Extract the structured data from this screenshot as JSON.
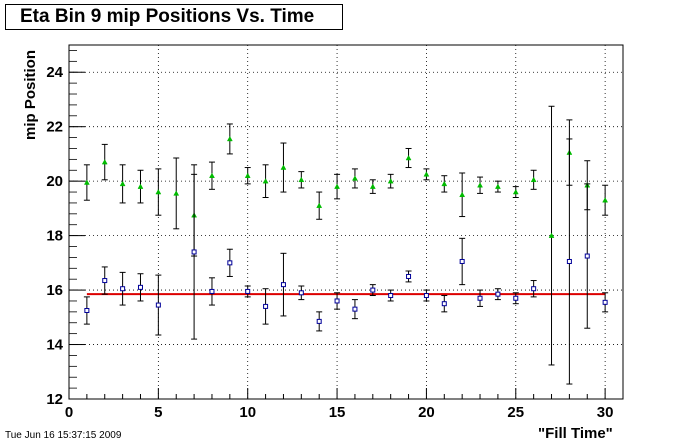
{
  "chart_data": {
    "type": "scatter",
    "title": "Eta Bin 9 mip Positions Vs. Time",
    "xlabel": "\"Fill Time\"",
    "ylabel": "mip Position",
    "xlim": [
      0,
      31
    ],
    "ylim": [
      12,
      25
    ],
    "xticks": [
      "0",
      "5",
      "10",
      "15",
      "20",
      "25",
      "30"
    ],
    "yticks": [
      "12",
      "14",
      "16",
      "18",
      "20",
      "22",
      "24"
    ],
    "grid": true,
    "series": [
      {
        "marker": "triangle",
        "color": "#00bb00",
        "x": [
          1,
          2,
          3,
          4,
          5,
          6,
          7,
          8,
          9,
          10,
          11,
          12,
          13,
          14,
          15,
          16,
          17,
          18,
          19,
          20,
          21,
          22,
          23,
          24,
          25,
          26,
          27,
          28,
          29,
          30
        ],
        "y": [
          19.95,
          20.7,
          19.9,
          19.8,
          19.6,
          19.55,
          18.75,
          20.2,
          21.55,
          20.2,
          20.0,
          20.5,
          20.05,
          19.1,
          19.8,
          20.1,
          19.8,
          20.0,
          20.85,
          20.25,
          19.9,
          19.5,
          19.85,
          19.8,
          19.6,
          20.05,
          18.0,
          21.05,
          19.85,
          19.3
        ],
        "err": [
          0.65,
          0.65,
          0.7,
          0.6,
          0.85,
          1.3,
          1.5,
          0.5,
          0.55,
          0.3,
          0.6,
          0.9,
          0.3,
          0.5,
          0.45,
          0.35,
          0.25,
          0.25,
          0.35,
          0.2,
          0.3,
          0.8,
          0.3,
          0.2,
          0.2,
          0.35,
          4.75,
          1.2,
          0.9,
          0.55
        ]
      },
      {
        "marker": "square",
        "color": "#000099",
        "x": [
          1,
          2,
          3,
          4,
          5,
          6,
          7,
          8,
          9,
          10,
          11,
          12,
          13,
          14,
          15,
          16,
          17,
          18,
          19,
          20,
          21,
          22,
          23,
          24,
          25,
          26,
          27,
          28,
          29,
          30
        ],
        "y": [
          15.25,
          16.35,
          16.05,
          16.1,
          15.45,
          null,
          17.4,
          15.95,
          17.0,
          15.95,
          15.4,
          16.2,
          15.9,
          14.85,
          15.6,
          15.3,
          16.0,
          15.8,
          16.5,
          15.8,
          15.5,
          17.05,
          15.7,
          15.85,
          15.7,
          16.05,
          null,
          17.05,
          17.25,
          15.55
        ],
        "err": [
          0.5,
          0.5,
          0.6,
          0.5,
          1.1,
          null,
          3.2,
          0.5,
          0.5,
          0.2,
          0.65,
          1.15,
          0.25,
          0.35,
          0.3,
          0.35,
          0.2,
          0.2,
          0.2,
          0.2,
          0.3,
          0.85,
          0.3,
          0.2,
          0.2,
          0.3,
          null,
          4.5,
          2.65,
          0.35
        ]
      }
    ],
    "fit_line": {
      "y": 15.85,
      "x_range": [
        1,
        30
      ],
      "color": "#dd0000"
    }
  },
  "footer": {
    "timestamp": "Tue Jun 16 15:37:15 2009"
  }
}
